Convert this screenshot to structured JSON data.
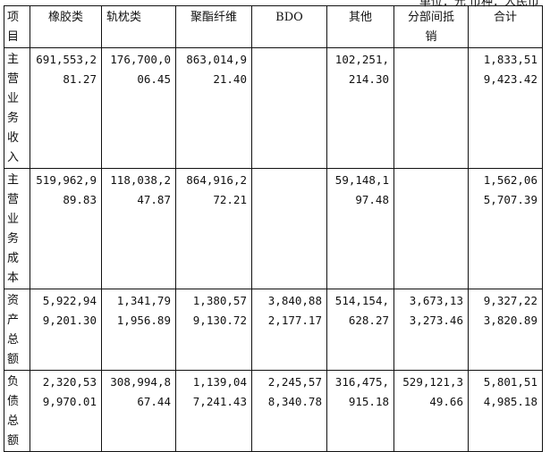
{
  "unit_note": "单位：元 币种：人民币",
  "table": {
    "headers": [
      "项目",
      "橡胶类",
      "轨枕类",
      "聚酯纤维",
      "BDO",
      "其他",
      "分部间抵销",
      "合计"
    ],
    "rows": [
      {
        "label": "主营业务收入",
        "values": [
          "691,553,281.27",
          "176,700,006.45",
          "863,014,921.40",
          "",
          "102,251,214.30",
          "",
          "1,833,519,423.42"
        ]
      },
      {
        "label": "主营业务成本",
        "values": [
          "519,962,989.83",
          "118,038,247.87",
          "864,916,272.21",
          "",
          "59,148,197.48",
          "",
          "1,562,065,707.39"
        ]
      },
      {
        "label": "资产总额",
        "values": [
          "5,922,949,201.30",
          "1,341,791,956.89",
          "1,380,579,130.72",
          "3,840,882,177.17",
          "514,154,628.27",
          "3,673,133,273.46",
          "9,327,223,820.89"
        ]
      },
      {
        "label": "负债总额",
        "values": [
          "2,320,539,970.01",
          "308,994,867.44",
          "1,139,047,241.43",
          "2,245,578,340.78",
          "316,475,915.18",
          "529,121,349.66",
          "5,801,514,985.18"
        ]
      }
    ]
  }
}
